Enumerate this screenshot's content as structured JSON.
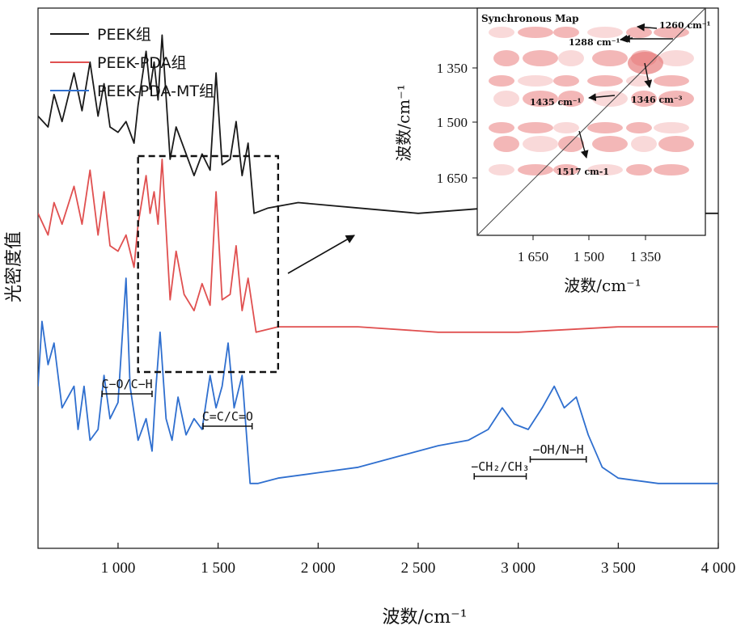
{
  "chart_data": {
    "type": "line",
    "title": "",
    "xlabel": "波数/cm⁻¹",
    "ylabel": "光密度值",
    "xlim": [
      600,
      4000
    ],
    "x_ticks": [
      1000,
      1500,
      2000,
      2500,
      3000,
      3500,
      4000
    ],
    "x_tick_labels": [
      "1 000",
      "1 500",
      "2 000",
      "2 500",
      "3 000",
      "3 500",
      "4 000"
    ],
    "legend_position": "top-left",
    "series": [
      {
        "name": "PEEK组",
        "color": "#1a1a1a",
        "points": [
          [
            600,
            0.8
          ],
          [
            650,
            0.78
          ],
          [
            680,
            0.84
          ],
          [
            720,
            0.79
          ],
          [
            780,
            0.88
          ],
          [
            820,
            0.81
          ],
          [
            860,
            0.9
          ],
          [
            900,
            0.8
          ],
          [
            930,
            0.86
          ],
          [
            960,
            0.78
          ],
          [
            1000,
            0.77
          ],
          [
            1040,
            0.79
          ],
          [
            1080,
            0.75
          ],
          [
            1100,
            0.82
          ],
          [
            1140,
            0.92
          ],
          [
            1160,
            0.85
          ],
          [
            1180,
            0.9
          ],
          [
            1200,
            0.83
          ],
          [
            1220,
            0.95
          ],
          [
            1260,
            0.72
          ],
          [
            1290,
            0.78
          ],
          [
            1330,
            0.74
          ],
          [
            1380,
            0.69
          ],
          [
            1420,
            0.73
          ],
          [
            1460,
            0.7
          ],
          [
            1490,
            0.88
          ],
          [
            1520,
            0.71
          ],
          [
            1560,
            0.72
          ],
          [
            1590,
            0.79
          ],
          [
            1620,
            0.69
          ],
          [
            1650,
            0.75
          ],
          [
            1680,
            0.62
          ],
          [
            1750,
            0.63
          ],
          [
            1900,
            0.64
          ],
          [
            2200,
            0.63
          ],
          [
            2500,
            0.62
          ],
          [
            2850,
            0.63
          ],
          [
            2920,
            0.65
          ],
          [
            3000,
            0.63
          ],
          [
            3500,
            0.62
          ],
          [
            4000,
            0.62
          ]
        ]
      },
      {
        "name": "PEEK-PDA组",
        "color": "#e05050",
        "points": [
          [
            600,
            0.62
          ],
          [
            650,
            0.58
          ],
          [
            680,
            0.64
          ],
          [
            720,
            0.6
          ],
          [
            780,
            0.67
          ],
          [
            820,
            0.6
          ],
          [
            860,
            0.7
          ],
          [
            900,
            0.58
          ],
          [
            930,
            0.66
          ],
          [
            960,
            0.56
          ],
          [
            1000,
            0.55
          ],
          [
            1040,
            0.58
          ],
          [
            1080,
            0.52
          ],
          [
            1100,
            0.6
          ],
          [
            1140,
            0.69
          ],
          [
            1160,
            0.62
          ],
          [
            1180,
            0.66
          ],
          [
            1200,
            0.6
          ],
          [
            1220,
            0.72
          ],
          [
            1260,
            0.46
          ],
          [
            1290,
            0.55
          ],
          [
            1330,
            0.47
          ],
          [
            1380,
            0.44
          ],
          [
            1420,
            0.49
          ],
          [
            1460,
            0.45
          ],
          [
            1490,
            0.66
          ],
          [
            1520,
            0.46
          ],
          [
            1560,
            0.47
          ],
          [
            1590,
            0.56
          ],
          [
            1620,
            0.44
          ],
          [
            1650,
            0.5
          ],
          [
            1690,
            0.4
          ],
          [
            1800,
            0.41
          ],
          [
            2200,
            0.41
          ],
          [
            2600,
            0.4
          ],
          [
            3000,
            0.4
          ],
          [
            3500,
            0.41
          ],
          [
            4000,
            0.41
          ]
        ]
      },
      {
        "name": "PEEK-PDA-MT组",
        "color": "#2f6fcf",
        "points": [
          [
            600,
            0.3
          ],
          [
            620,
            0.42
          ],
          [
            650,
            0.34
          ],
          [
            680,
            0.38
          ],
          [
            720,
            0.26
          ],
          [
            780,
            0.3
          ],
          [
            800,
            0.22
          ],
          [
            830,
            0.3
          ],
          [
            860,
            0.2
          ],
          [
            900,
            0.22
          ],
          [
            930,
            0.32
          ],
          [
            960,
            0.24
          ],
          [
            1000,
            0.27
          ],
          [
            1040,
            0.5
          ],
          [
            1060,
            0.3
          ],
          [
            1100,
            0.2
          ],
          [
            1140,
            0.24
          ],
          [
            1170,
            0.18
          ],
          [
            1190,
            0.3
          ],
          [
            1210,
            0.4
          ],
          [
            1240,
            0.24
          ],
          [
            1270,
            0.2
          ],
          [
            1300,
            0.28
          ],
          [
            1340,
            0.21
          ],
          [
            1380,
            0.24
          ],
          [
            1420,
            0.22
          ],
          [
            1460,
            0.32
          ],
          [
            1490,
            0.26
          ],
          [
            1520,
            0.3
          ],
          [
            1550,
            0.38
          ],
          [
            1580,
            0.26
          ],
          [
            1620,
            0.32
          ],
          [
            1660,
            0.12
          ],
          [
            1700,
            0.12
          ],
          [
            1800,
            0.13
          ],
          [
            2000,
            0.14
          ],
          [
            2200,
            0.15
          ],
          [
            2400,
            0.17
          ],
          [
            2600,
            0.19
          ],
          [
            2750,
            0.2
          ],
          [
            2850,
            0.22
          ],
          [
            2920,
            0.26
          ],
          [
            2980,
            0.23
          ],
          [
            3050,
            0.22
          ],
          [
            3120,
            0.26
          ],
          [
            3180,
            0.3
          ],
          [
            3230,
            0.26
          ],
          [
            3290,
            0.28
          ],
          [
            3350,
            0.21
          ],
          [
            3420,
            0.15
          ],
          [
            3500,
            0.13
          ],
          [
            3700,
            0.12
          ],
          [
            4000,
            0.12
          ]
        ]
      }
    ],
    "annotations": [
      {
        "text": "C−O/C−H",
        "x_range": [
          920,
          1170
        ]
      },
      {
        "text": "C=C/C=O",
        "x_range": [
          1425,
          1670
        ]
      },
      {
        "text": "−CH₂/CH₃",
        "x_range": [
          2780,
          3040
        ]
      },
      {
        "text": "−OH/N−H",
        "x_range": [
          3060,
          3340
        ]
      }
    ],
    "zoom_box": {
      "x_range": [
        1100,
        1800
      ]
    },
    "inset": {
      "title": "Synchronous Map",
      "xlabel": "波数/cm⁻¹",
      "ylabel": "波数/cm⁻¹",
      "x_tick_labels": [
        "1 650",
        "1 500",
        "1 350"
      ],
      "y_tick_labels": [
        "1 350",
        "1 500",
        "1 650"
      ],
      "peak_labels": [
        "1260 cm⁻¹",
        "1288 cm⁻¹",
        "1346 cm⁻³",
        "1435 cm⁻¹",
        "1517 cm-1"
      ]
    }
  }
}
